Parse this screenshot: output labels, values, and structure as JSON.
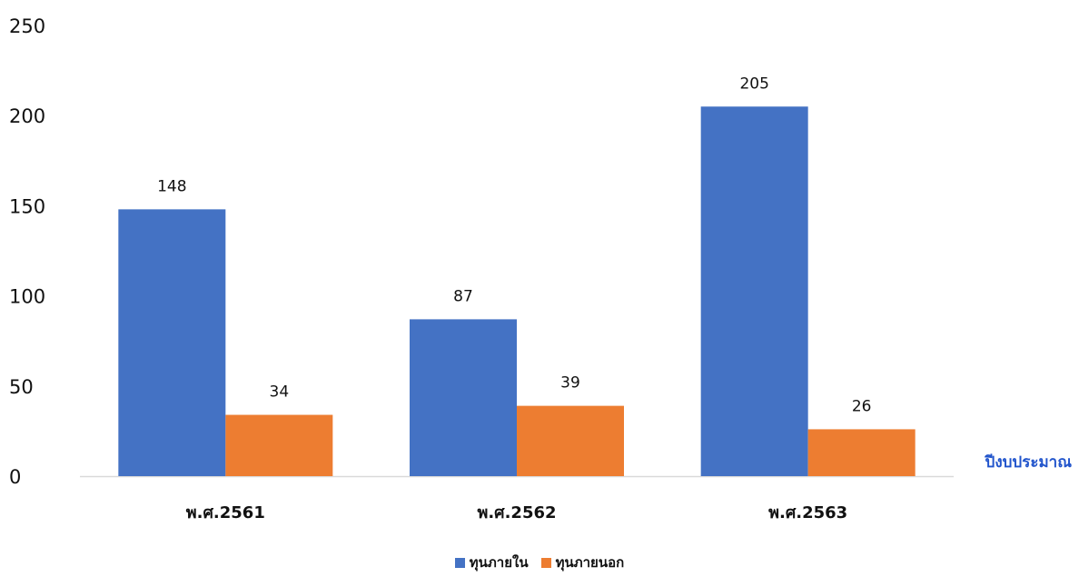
{
  "chart_data": {
    "type": "bar",
    "categories": [
      "พ.ศ.2561",
      "พ.ศ.2562",
      "พ.ศ.2563"
    ],
    "series": [
      {
        "name": "ทุนภายใน",
        "values": [
          148,
          87,
          205
        ],
        "color": "#4472C4"
      },
      {
        "name": "ทุนภายนอก",
        "values": [
          34,
          39,
          26
        ],
        "color": "#ED7D31"
      }
    ],
    "xlabel": "ปีงบประมาณ",
    "xlabel_color": "#2255CC",
    "ylabel": "",
    "ylim": [
      0,
      250
    ],
    "yticks": [
      "0",
      "50",
      "100",
      "150",
      "200",
      "250"
    ],
    "grid": false,
    "data_labels": true,
    "legend": "bottom"
  }
}
